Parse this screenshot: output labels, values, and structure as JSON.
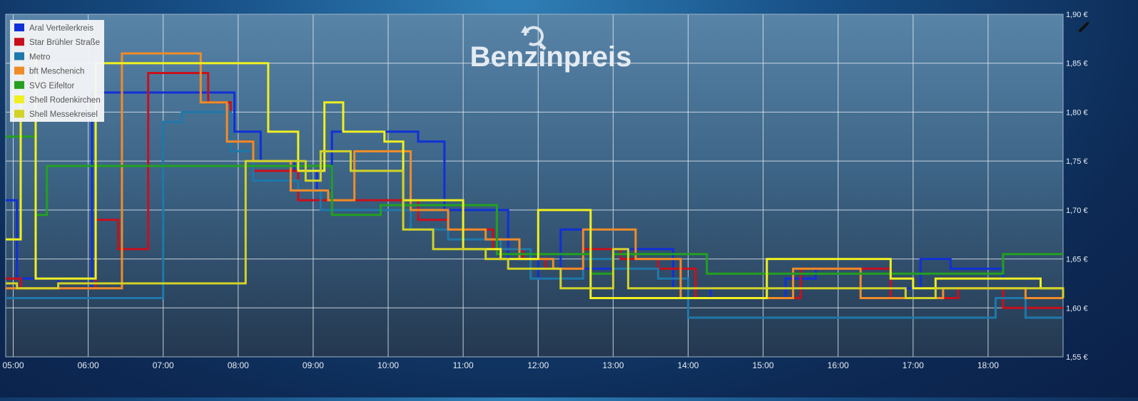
{
  "chart_data": {
    "type": "line",
    "step": true,
    "title": "Benzinpreis",
    "x_ticks": [
      "05:00",
      "06:00",
      "07:00",
      "08:00",
      "09:00",
      "10:00",
      "11:00",
      "12:00",
      "13:00",
      "14:00",
      "15:00",
      "16:00",
      "17:00",
      "18:00"
    ],
    "y_ticks": [
      "1,55 €",
      "1,60 €",
      "1,65 €",
      "1,70 €",
      "1,75 €",
      "1,80 €",
      "1,85 €",
      "1,90 €"
    ],
    "xlim_hours": [
      4.9,
      19.0
    ],
    "ylim": [
      1.55,
      1.9
    ],
    "grid": true,
    "legend_position": "top-left",
    "series": [
      {
        "name": "Aral Verteilerkreis",
        "color": "#1030d8",
        "points": [
          [
            4.9,
            1.71
          ],
          [
            5.05,
            1.63
          ],
          [
            5.6,
            1.62
          ],
          [
            6.05,
            1.82
          ],
          [
            7.3,
            1.82
          ],
          [
            7.95,
            1.78
          ],
          [
            8.3,
            1.75
          ],
          [
            8.75,
            1.74
          ],
          [
            9.05,
            1.72
          ],
          [
            9.25,
            1.78
          ],
          [
            9.5,
            1.78
          ],
          [
            10.0,
            1.78
          ],
          [
            10.4,
            1.77
          ],
          [
            10.75,
            1.7
          ],
          [
            11.3,
            1.7
          ],
          [
            11.6,
            1.65
          ],
          [
            12.0,
            1.63
          ],
          [
            12.3,
            1.68
          ],
          [
            12.6,
            1.64
          ],
          [
            13.0,
            1.66
          ],
          [
            13.8,
            1.62
          ],
          [
            14.3,
            1.61
          ],
          [
            15.3,
            1.63
          ],
          [
            15.7,
            1.64
          ],
          [
            16.3,
            1.64
          ],
          [
            16.7,
            1.62
          ],
          [
            17.1,
            1.65
          ],
          [
            17.5,
            1.64
          ],
          [
            18.2,
            1.63
          ],
          [
            18.7,
            1.62
          ],
          [
            19.0,
            1.62
          ]
        ]
      },
      {
        "name": "Star Brühler Straße",
        "color": "#c8101c",
        "points": [
          [
            4.9,
            1.63
          ],
          [
            5.1,
            1.62
          ],
          [
            6.1,
            1.69
          ],
          [
            6.4,
            1.66
          ],
          [
            6.8,
            1.84
          ],
          [
            7.6,
            1.81
          ],
          [
            7.9,
            1.77
          ],
          [
            8.2,
            1.74
          ],
          [
            8.8,
            1.71
          ],
          [
            9.3,
            1.71
          ],
          [
            9.8,
            1.71
          ],
          [
            10.0,
            1.71
          ],
          [
            10.4,
            1.69
          ],
          [
            10.8,
            1.68
          ],
          [
            11.4,
            1.66
          ],
          [
            11.8,
            1.65
          ],
          [
            12.1,
            1.64
          ],
          [
            12.6,
            1.66
          ],
          [
            13.1,
            1.65
          ],
          [
            13.6,
            1.64
          ],
          [
            14.1,
            1.61
          ],
          [
            14.6,
            1.61
          ],
          [
            15.5,
            1.64
          ],
          [
            16.0,
            1.64
          ],
          [
            16.7,
            1.61
          ],
          [
            17.2,
            1.61
          ],
          [
            17.6,
            1.62
          ],
          [
            18.2,
            1.6
          ],
          [
            18.8,
            1.6
          ],
          [
            19.0,
            1.6
          ]
        ]
      },
      {
        "name": "Metro",
        "color": "#1f78aa",
        "points": [
          [
            4.9,
            1.61
          ],
          [
            7.0,
            1.79
          ],
          [
            7.25,
            1.8
          ],
          [
            7.9,
            1.76
          ],
          [
            8.2,
            1.73
          ],
          [
            8.8,
            1.72
          ],
          [
            9.1,
            1.7
          ],
          [
            9.6,
            1.7
          ],
          [
            10.3,
            1.68
          ],
          [
            10.8,
            1.67
          ],
          [
            11.5,
            1.66
          ],
          [
            11.9,
            1.63
          ],
          [
            12.6,
            1.65
          ],
          [
            13.0,
            1.64
          ],
          [
            13.6,
            1.63
          ],
          [
            14.0,
            1.59
          ],
          [
            15.0,
            1.59
          ],
          [
            16.0,
            1.59
          ],
          [
            16.8,
            1.59
          ],
          [
            17.4,
            1.59
          ],
          [
            18.1,
            1.61
          ],
          [
            18.5,
            1.59
          ],
          [
            19.0,
            1.59
          ]
        ]
      },
      {
        "name": "bft Meschenich",
        "color": "#f08c28",
        "points": [
          [
            4.9,
            1.62
          ],
          [
            6.45,
            1.86
          ],
          [
            7.5,
            1.81
          ],
          [
            7.85,
            1.77
          ],
          [
            8.2,
            1.75
          ],
          [
            8.7,
            1.72
          ],
          [
            9.2,
            1.71
          ],
          [
            9.55,
            1.76
          ],
          [
            10.3,
            1.7
          ],
          [
            10.8,
            1.68
          ],
          [
            11.3,
            1.67
          ],
          [
            11.75,
            1.65
          ],
          [
            12.2,
            1.64
          ],
          [
            12.6,
            1.68
          ],
          [
            13.3,
            1.65
          ],
          [
            13.9,
            1.61
          ],
          [
            15.4,
            1.64
          ],
          [
            16.3,
            1.61
          ],
          [
            16.8,
            1.61
          ],
          [
            17.4,
            1.62
          ],
          [
            18.0,
            1.62
          ],
          [
            18.5,
            1.61
          ],
          [
            19.0,
            1.61
          ]
        ]
      },
      {
        "name": "SVG Eifeltor",
        "color": "#23a020",
        "points": [
          [
            4.9,
            1.775
          ],
          [
            5.3,
            1.695
          ],
          [
            5.45,
            1.745
          ],
          [
            9.25,
            1.695
          ],
          [
            9.9,
            1.705
          ],
          [
            11.45,
            1.655
          ],
          [
            12.7,
            1.635
          ],
          [
            13.0,
            1.655
          ],
          [
            14.25,
            1.635
          ],
          [
            18.2,
            1.655
          ],
          [
            19.0,
            1.655
          ]
        ]
      },
      {
        "name": "Shell Rodenkirchen",
        "color": "#f0f020",
        "points": [
          [
            4.9,
            1.67
          ],
          [
            5.1,
            1.86
          ],
          [
            5.3,
            1.63
          ],
          [
            6.1,
            1.85
          ],
          [
            8.0,
            1.85
          ],
          [
            8.4,
            1.78
          ],
          [
            8.8,
            1.74
          ],
          [
            9.15,
            1.81
          ],
          [
            9.4,
            1.78
          ],
          [
            9.95,
            1.77
          ],
          [
            10.2,
            1.71
          ],
          [
            11.0,
            1.66
          ],
          [
            11.5,
            1.65
          ],
          [
            12.0,
            1.7
          ],
          [
            12.7,
            1.61
          ],
          [
            13.2,
            1.61
          ],
          [
            15.05,
            1.65
          ],
          [
            16.7,
            1.63
          ],
          [
            17.0,
            1.62
          ],
          [
            17.3,
            1.63
          ],
          [
            18.3,
            1.63
          ],
          [
            18.7,
            1.62
          ],
          [
            19.0,
            1.62
          ]
        ]
      },
      {
        "name": "Shell Messekreisel",
        "color": "#d2d228",
        "points": [
          [
            4.9,
            1.625
          ],
          [
            5.05,
            1.62
          ],
          [
            5.6,
            1.625
          ],
          [
            7.9,
            1.625
          ],
          [
            8.1,
            1.75
          ],
          [
            8.6,
            1.75
          ],
          [
            8.9,
            1.73
          ],
          [
            9.1,
            1.76
          ],
          [
            9.5,
            1.74
          ],
          [
            10.0,
            1.74
          ],
          [
            10.2,
            1.68
          ],
          [
            10.6,
            1.66
          ],
          [
            11.3,
            1.65
          ],
          [
            11.6,
            1.64
          ],
          [
            12.0,
            1.64
          ],
          [
            12.3,
            1.62
          ],
          [
            12.5,
            1.62
          ],
          [
            13.0,
            1.66
          ],
          [
            13.2,
            1.62
          ],
          [
            14.0,
            1.62
          ],
          [
            15.0,
            1.62
          ],
          [
            15.3,
            1.62
          ],
          [
            16.2,
            1.62
          ],
          [
            16.6,
            1.62
          ],
          [
            16.9,
            1.61
          ],
          [
            17.3,
            1.62
          ],
          [
            17.8,
            1.62
          ],
          [
            18.1,
            1.62
          ],
          [
            18.6,
            1.62
          ],
          [
            19.0,
            1.61
          ]
        ]
      }
    ]
  },
  "toolbar": {
    "refresh_icon": "refresh-icon",
    "edit_icon": "pencil-icon"
  }
}
